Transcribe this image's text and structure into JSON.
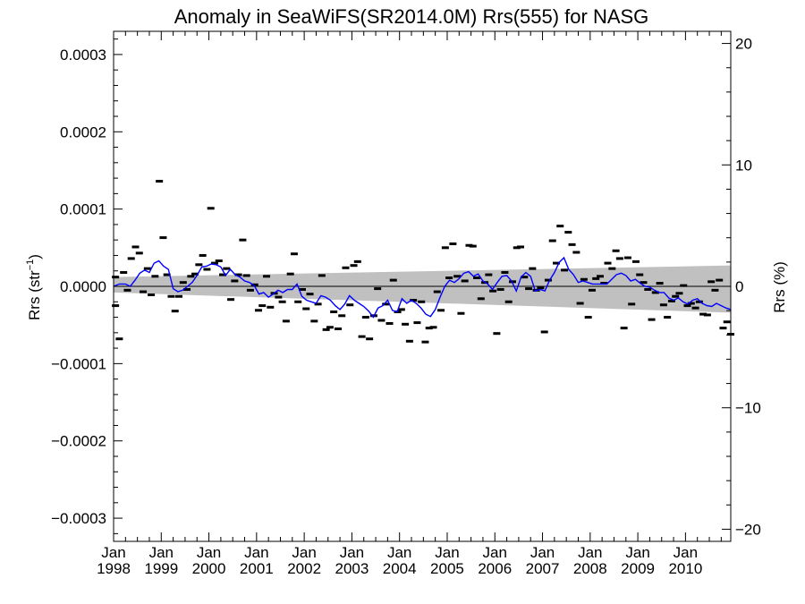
{
  "chart_data": {
    "type": "scatter",
    "title": "Anomaly in SeaWiFS(SR2014.0M) Rrs(555) for NASG",
    "ylabel": "Rrs (str",
    "ylabel_sup": "−1",
    "ylabel_close": ")",
    "y2label": "Rrs (%)",
    "xlim": [
      1998.0,
      2010.95
    ],
    "ylim": [
      -0.00033,
      0.00033
    ],
    "y2lim": [
      -21,
      21
    ],
    "x_ticks": [
      {
        "year": 1998,
        "label_top": "Jan",
        "label_bottom": "1998"
      },
      {
        "year": 1999,
        "label_top": "Jan",
        "label_bottom": "1999"
      },
      {
        "year": 2000,
        "label_top": "Jan",
        "label_bottom": "2000"
      },
      {
        "year": 2001,
        "label_top": "Jan",
        "label_bottom": "2001"
      },
      {
        "year": 2002,
        "label_top": "Jan",
        "label_bottom": "2002"
      },
      {
        "year": 2003,
        "label_top": "Jan",
        "label_bottom": "2003"
      },
      {
        "year": 2004,
        "label_top": "Jan",
        "label_bottom": "2004"
      },
      {
        "year": 2005,
        "label_top": "Jan",
        "label_bottom": "2005"
      },
      {
        "year": 2006,
        "label_top": "Jan",
        "label_bottom": "2006"
      },
      {
        "year": 2007,
        "label_top": "Jan",
        "label_bottom": "2007"
      },
      {
        "year": 2008,
        "label_top": "Jan",
        "label_bottom": "2008"
      },
      {
        "year": 2009,
        "label_top": "Jan",
        "label_bottom": "2009"
      },
      {
        "year": 2010,
        "label_top": "Jan",
        "label_bottom": "2010"
      }
    ],
    "y_ticks": [
      {
        "value": 0.0003,
        "label": "0.0003"
      },
      {
        "value": 0.0002,
        "label": "0.0002"
      },
      {
        "value": 0.0001,
        "label": "0.0001"
      },
      {
        "value": 0.0,
        "label": "0.0000"
      },
      {
        "value": -0.0001,
        "label": "−0.0001"
      },
      {
        "value": -0.0002,
        "label": "−0.0002"
      },
      {
        "value": -0.0003,
        "label": "−0.0003"
      }
    ],
    "y2_ticks": [
      {
        "value": 20,
        "label": "20"
      },
      {
        "value": 10,
        "label": "10"
      },
      {
        "value": 0,
        "label": "0"
      },
      {
        "value": -10,
        "label": "−10"
      },
      {
        "value": -20,
        "label": "−20"
      }
    ],
    "y_minor_step": 2e-05,
    "y2_minor_step": 2,
    "x_minor_per_year": 4,
    "zero_line": true,
    "confidence_band": {
      "x": [
        1998.0,
        2010.95
      ],
      "upper": [
        1.2e-05,
        2.7e-05
      ],
      "lower": [
        -8e-06,
        -3.4e-05
      ]
    },
    "monthly_anomalies": [
      {
        "x": 1998.04,
        "y": 1.2e-05
      },
      {
        "x": 1998.04,
        "y": -2.5e-05
      },
      {
        "x": 1998.12,
        "y": -6.8e-05
      },
      {
        "x": 1998.21,
        "y": 1.8e-05
      },
      {
        "x": 1998.29,
        "y": -5e-06
      },
      {
        "x": 1998.37,
        "y": 3.6e-05
      },
      {
        "x": 1998.46,
        "y": 5.1e-05
      },
      {
        "x": 1998.54,
        "y": 4.3e-05
      },
      {
        "x": 1998.62,
        "y": -7e-06
      },
      {
        "x": 1998.71,
        "y": 2.3e-05
      },
      {
        "x": 1998.79,
        "y": -1.1e-05
      },
      {
        "x": 1998.87,
        "y": 1.3e-05
      },
      {
        "x": 1998.96,
        "y": 0.000136
      },
      {
        "x": 1999.04,
        "y": 6.3e-05
      },
      {
        "x": 1999.12,
        "y": 1.5e-05
      },
      {
        "x": 1999.21,
        "y": -1.3e-05
      },
      {
        "x": 1999.29,
        "y": -3.2e-05
      },
      {
        "x": 1999.37,
        "y": -1.3e-05
      },
      {
        "x": 1999.46,
        "y": 5e-06
      },
      {
        "x": 1999.54,
        "y": -4e-06
      },
      {
        "x": 1999.62,
        "y": 1.3e-05
      },
      {
        "x": 1999.71,
        "y": 1.6e-05
      },
      {
        "x": 1999.79,
        "y": 2.8e-05
      },
      {
        "x": 1999.87,
        "y": 4e-05
      },
      {
        "x": 1999.96,
        "y": 2.2e-05
      },
      {
        "x": 2000.04,
        "y": 0.000101
      },
      {
        "x": 2000.12,
        "y": 3e-05
      },
      {
        "x": 2000.21,
        "y": 3.3e-05
      },
      {
        "x": 2000.29,
        "y": 1.5e-05
      },
      {
        "x": 2000.37,
        "y": 2.3e-05
      },
      {
        "x": 2000.46,
        "y": -1.7e-05
      },
      {
        "x": 2000.54,
        "y": 7e-06
      },
      {
        "x": 2000.62,
        "y": 1.5e-05
      },
      {
        "x": 2000.71,
        "y": 6e-05
      },
      {
        "x": 2000.79,
        "y": 1.4e-05
      },
      {
        "x": 2000.87,
        "y": -5e-06
      },
      {
        "x": 2000.96,
        "y": 2e-06
      },
      {
        "x": 2001.04,
        "y": -3.1e-05
      },
      {
        "x": 2001.12,
        "y": -2.5e-05
      },
      {
        "x": 2001.21,
        "y": 1.3e-05
      },
      {
        "x": 2001.29,
        "y": -2.7e-05
      },
      {
        "x": 2001.37,
        "y": -9e-06
      },
      {
        "x": 2001.46,
        "y": -1.4e-05
      },
      {
        "x": 2001.54,
        "y": -2e-05
      },
      {
        "x": 2001.62,
        "y": -4.5e-05
      },
      {
        "x": 2001.71,
        "y": 1.6e-05
      },
      {
        "x": 2001.79,
        "y": 4.2e-05
      },
      {
        "x": 2001.87,
        "y": -2e-05
      },
      {
        "x": 2001.96,
        "y": -4e-06
      },
      {
        "x": 2002.04,
        "y": -2.9e-05
      },
      {
        "x": 2002.12,
        "y": -1e-05
      },
      {
        "x": 2002.21,
        "y": -4.5e-05
      },
      {
        "x": 2002.29,
        "y": -2.3e-05
      },
      {
        "x": 2002.37,
        "y": 1.4e-05
      },
      {
        "x": 2002.46,
        "y": -5.6e-05
      },
      {
        "x": 2002.54,
        "y": -5.3e-05
      },
      {
        "x": 2002.62,
        "y": -3.3e-05
      },
      {
        "x": 2002.71,
        "y": -5.5e-05
      },
      {
        "x": 2002.79,
        "y": -3.8e-05
      },
      {
        "x": 2002.87,
        "y": 2.4e-05
      },
      {
        "x": 2002.96,
        "y": -2.4e-05
      },
      {
        "x": 2003.04,
        "y": 2.7e-05
      },
      {
        "x": 2003.12,
        "y": 3.2e-05
      },
      {
        "x": 2003.21,
        "y": -6.5e-05
      },
      {
        "x": 2003.29,
        "y": -4e-05
      },
      {
        "x": 2003.37,
        "y": -6.8e-05
      },
      {
        "x": 2003.46,
        "y": -3.8e-05
      },
      {
        "x": 2003.54,
        "y": -3e-06
      },
      {
        "x": 2003.62,
        "y": -4.4e-05
      },
      {
        "x": 2003.71,
        "y": -2.3e-05
      },
      {
        "x": 2003.79,
        "y": -4.8e-05
      },
      {
        "x": 2003.87,
        "y": 8e-06
      },
      {
        "x": 2003.96,
        "y": -3.3e-05
      },
      {
        "x": 2004.04,
        "y": -3e-05
      },
      {
        "x": 2004.12,
        "y": -4.9e-05
      },
      {
        "x": 2004.21,
        "y": -7.1e-05
      },
      {
        "x": 2004.29,
        "y": -1.8e-05
      },
      {
        "x": 2004.37,
        "y": -4.7e-05
      },
      {
        "x": 2004.46,
        "y": -2e-05
      },
      {
        "x": 2004.54,
        "y": -7.2e-05
      },
      {
        "x": 2004.62,
        "y": -5.4e-05
      },
      {
        "x": 2004.71,
        "y": -5.3e-05
      },
      {
        "x": 2004.79,
        "y": -7e-06
      },
      {
        "x": 2004.87,
        "y": -3.1e-05
      },
      {
        "x": 2004.96,
        "y": 5e-05
      },
      {
        "x": 2005.04,
        "y": 1.1e-05
      },
      {
        "x": 2005.12,
        "y": 5.5e-05
      },
      {
        "x": 2005.21,
        "y": 1.3e-05
      },
      {
        "x": 2005.29,
        "y": -3.5e-05
      },
      {
        "x": 2005.37,
        "y": 7e-06
      },
      {
        "x": 2005.46,
        "y": 5.3e-05
      },
      {
        "x": 2005.54,
        "y": 5.2e-05
      },
      {
        "x": 2005.62,
        "y": 1.1e-05
      },
      {
        "x": 2005.71,
        "y": -1.6e-05
      },
      {
        "x": 2005.79,
        "y": 5e-06
      },
      {
        "x": 2005.87,
        "y": 1.5e-05
      },
      {
        "x": 2005.96,
        "y": -6e-06
      },
      {
        "x": 2006.04,
        "y": -6.1e-05
      },
      {
        "x": 2006.12,
        "y": -4e-06
      },
      {
        "x": 2006.21,
        "y": 1.8e-05
      },
      {
        "x": 2006.29,
        "y": -2e-05
      },
      {
        "x": 2006.37,
        "y": 6e-06
      },
      {
        "x": 2006.46,
        "y": 5e-05
      },
      {
        "x": 2006.54,
        "y": 5.1e-05
      },
      {
        "x": 2006.62,
        "y": 1.2e-05
      },
      {
        "x": 2006.71,
        "y": -3e-06
      },
      {
        "x": 2006.79,
        "y": 2.3e-05
      },
      {
        "x": 2006.87,
        "y": -5e-06
      },
      {
        "x": 2006.96,
        "y": -2e-06
      },
      {
        "x": 2007.04,
        "y": -5.9e-05
      },
      {
        "x": 2007.12,
        "y": 8e-06
      },
      {
        "x": 2007.21,
        "y": 5.9e-05
      },
      {
        "x": 2007.29,
        "y": 3e-05
      },
      {
        "x": 2007.37,
        "y": 7.8e-05
      },
      {
        "x": 2007.46,
        "y": 2.1e-05
      },
      {
        "x": 2007.54,
        "y": 7e-05
      },
      {
        "x": 2007.62,
        "y": 5.4e-05
      },
      {
        "x": 2007.71,
        "y": 4.4e-05
      },
      {
        "x": 2007.79,
        "y": -2.2e-05
      },
      {
        "x": 2007.87,
        "y": 9e-06
      },
      {
        "x": 2007.96,
        "y": -4e-05
      },
      {
        "x": 2008.04,
        "y": -5e-06
      },
      {
        "x": 2008.12,
        "y": 1e-05
      },
      {
        "x": 2008.21,
        "y": 1.3e-05
      },
      {
        "x": 2008.29,
        "y": 4e-06
      },
      {
        "x": 2008.37,
        "y": 3e-05
      },
      {
        "x": 2008.46,
        "y": 2.3e-05
      },
      {
        "x": 2008.54,
        "y": 4.6e-05
      },
      {
        "x": 2008.62,
        "y": 3.6e-05
      },
      {
        "x": 2008.71,
        "y": -5.4e-05
      },
      {
        "x": 2008.79,
        "y": 3.7e-05
      },
      {
        "x": 2008.87,
        "y": -2.3e-05
      },
      {
        "x": 2008.96,
        "y": 3.2e-05
      },
      {
        "x": 2009.04,
        "y": 1.5e-05
      },
      {
        "x": 2009.12,
        "y": 5e-06
      },
      {
        "x": 2009.21,
        "y": -4e-06
      },
      {
        "x": 2009.29,
        "y": -4.3e-05
      },
      {
        "x": 2009.37,
        "y": -8e-06
      },
      {
        "x": 2009.46,
        "y": 4e-06
      },
      {
        "x": 2009.54,
        "y": -2.4e-05
      },
      {
        "x": 2009.62,
        "y": -4e-05
      },
      {
        "x": 2009.71,
        "y": -1.9e-05
      },
      {
        "x": 2009.79,
        "y": -1.3e-05
      },
      {
        "x": 2009.87,
        "y": -9e-06
      },
      {
        "x": 2009.96,
        "y": 1e-06
      },
      {
        "x": 2010.04,
        "y": -2.5e-05
      },
      {
        "x": 2010.12,
        "y": -2.2e-05
      },
      {
        "x": 2010.21,
        "y": -2.8e-05
      },
      {
        "x": 2010.29,
        "y": -2e-05
      },
      {
        "x": 2010.37,
        "y": -3.6e-05
      },
      {
        "x": 2010.46,
        "y": -3.7e-05
      },
      {
        "x": 2010.54,
        "y": 6e-06
      },
      {
        "x": 2010.62,
        "y": -5e-06
      },
      {
        "x": 2010.71,
        "y": 8e-06
      },
      {
        "x": 2010.79,
        "y": -5.4e-05
      },
      {
        "x": 2010.87,
        "y": -4.6e-05
      },
      {
        "x": 2010.95,
        "y": -6.2e-05
      }
    ],
    "running_mean": {
      "color": "#0000ff",
      "x": [
        1998.0,
        1998.12,
        1998.25,
        1998.35,
        1998.45,
        1998.55,
        1998.65,
        1998.75,
        1998.85,
        1998.95,
        1999.05,
        1999.15,
        1999.25,
        1999.35,
        1999.45,
        1999.55,
        1999.65,
        1999.75,
        1999.85,
        1999.95,
        2000.05,
        2000.15,
        2000.25,
        2000.35,
        2000.45,
        2000.55,
        2000.65,
        2000.75,
        2000.85,
        2000.95,
        2001.05,
        2001.15,
        2001.25,
        2001.35,
        2001.45,
        2001.55,
        2001.65,
        2001.75,
        2001.85,
        2001.95,
        2002.05,
        2002.15,
        2002.25,
        2002.35,
        2002.45,
        2002.55,
        2002.65,
        2002.75,
        2002.85,
        2002.95,
        2003.05,
        2003.15,
        2003.25,
        2003.35,
        2003.45,
        2003.55,
        2003.65,
        2003.75,
        2003.85,
        2003.95,
        2004.05,
        2004.15,
        2004.25,
        2004.35,
        2004.45,
        2004.55,
        2004.65,
        2004.75,
        2004.85,
        2004.95,
        2005.05,
        2005.15,
        2005.25,
        2005.35,
        2005.45,
        2005.55,
        2005.65,
        2005.75,
        2005.85,
        2005.95,
        2006.05,
        2006.15,
        2006.25,
        2006.35,
        2006.45,
        2006.55,
        2006.65,
        2006.75,
        2006.85,
        2006.95,
        2007.05,
        2007.15,
        2007.25,
        2007.35,
        2007.45,
        2007.55,
        2007.65,
        2007.75,
        2007.85,
        2007.95,
        2008.05,
        2008.15,
        2008.25,
        2008.35,
        2008.45,
        2008.55,
        2008.65,
        2008.75,
        2008.85,
        2008.95,
        2009.05,
        2009.15,
        2009.25,
        2009.35,
        2009.45,
        2009.55,
        2009.65,
        2009.75,
        2009.85,
        2009.95,
        2010.05,
        2010.15,
        2010.25,
        2010.35,
        2010.45,
        2010.55,
        2010.65,
        2010.75,
        2010.85,
        2010.95
      ],
      "y": [
        0.0,
        3e-06,
        3e-06,
        0.0,
        8e-06,
        1.7e-05,
        2.1e-05,
        1.8e-05,
        3e-05,
        3.3e-05,
        2.6e-05,
        2.2e-05,
        -3e-06,
        -7e-06,
        -5e-06,
        0.0,
        5e-06,
        1.4e-05,
        2.5e-05,
        2.6e-05,
        2.9e-05,
        2.8e-05,
        2.5e-05,
        1.4e-05,
        2.2e-05,
        1.5e-05,
        1.2e-05,
        7e-06,
        5e-06,
        1e-06,
        -1e-05,
        -8e-06,
        -1.4e-05,
        -1e-05,
        -5e-06,
        -8e-06,
        -4e-06,
        -4e-06,
        3e-06,
        -1.3e-05,
        -1.8e-05,
        -2e-05,
        -2.2e-05,
        -1.2e-05,
        -1.4e-05,
        -1.8e-05,
        -2.5e-05,
        -3e-05,
        -2.3e-05,
        -1.2e-05,
        -1.8e-05,
        -2.2e-05,
        -2.6e-05,
        -3.2e-05,
        -4e-05,
        -2.8e-05,
        -2.5e-05,
        -1.8e-05,
        -3.1e-05,
        -3.3e-05,
        -1.6e-05,
        -2.2e-05,
        -1.8e-05,
        -2.2e-05,
        -2.8e-05,
        -3.6e-05,
        -3.9e-05,
        -3e-05,
        -1.4e-05,
        0.0,
        8e-06,
        5e-06,
        1e-05,
        1.7e-05,
        1.9e-05,
        1.3e-05,
        1.6e-05,
        7e-06,
        3e-06,
        -4e-06,
        5e-06,
        1.3e-05,
        1.4e-05,
        7e-06,
        -6e-06,
        1.2e-05,
        1.8e-05,
        1.3e-05,
        -6e-06,
        -4e-06,
        -6e-06,
        8e-06,
        1.8e-05,
        3.1e-05,
        3.7e-05,
        2.2e-05,
        1.5e-05,
        5e-06,
        7e-06,
        5e-06,
        3e-06,
        3e-06,
        3e-06,
        3e-06,
        9e-06,
        1.5e-05,
        1.7e-05,
        1.4e-05,
        7e-06,
        9e-06,
        4e-06,
        0.0,
        -1e-06,
        -5e-06,
        -8e-06,
        -8e-06,
        -1.5e-05,
        -1.8e-05,
        -1.5e-05,
        -2e-05,
        -2.3e-05,
        -1.8e-05,
        -1.6e-05,
        -2.2e-05,
        -2.5e-05,
        -2.6e-05,
        -2.2e-05,
        -2.5e-05,
        -2.8e-05,
        -3e-05
      ]
    }
  }
}
